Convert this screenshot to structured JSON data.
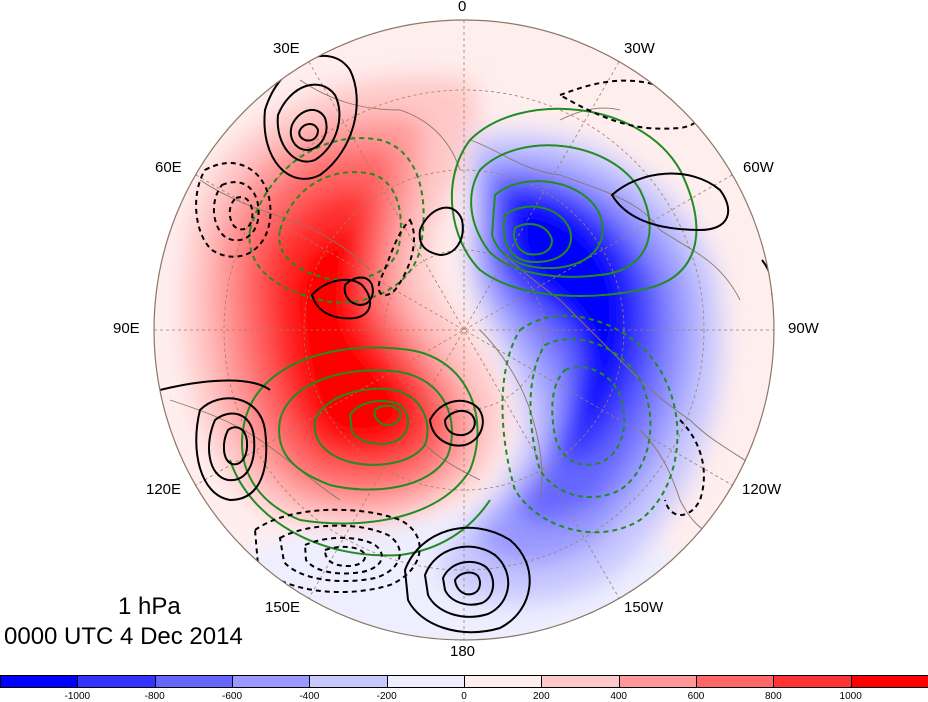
{
  "map": {
    "level_label": "1 hPa",
    "time_label": "0000 UTC 4 Dec 2014",
    "projection": "north polar stereographic",
    "longitude_labels": {
      "lon_0": "0",
      "lon_30w": "30W",
      "lon_60w": "60W",
      "lon_90w": "90W",
      "lon_120w": "120W",
      "lon_150w": "150W",
      "lon_180": "180",
      "lon_150e": "150E",
      "lon_120e": "120E",
      "lon_90e": "90E",
      "lon_60e": "60E",
      "lon_30e": "30E"
    },
    "colors": {
      "positive_max": "#ff0000",
      "negative_max": "#0000ff",
      "contour_green": "#228b22",
      "contour_black": "#000000",
      "coastline": "#8b7765",
      "graticule": "#a08060"
    }
  },
  "colorbar": {
    "tick_labels": [
      "-1000",
      "-800",
      "-600",
      "-400",
      "-200",
      "0",
      "200",
      "400",
      "600",
      "800",
      "1000"
    ],
    "colors": [
      "#0000ff",
      "#3333ff",
      "#6666ff",
      "#9999ff",
      "#c8c8ff",
      "#eeeeff",
      "#ffeeee",
      "#ffc8c8",
      "#ff9999",
      "#ff6666",
      "#ff3333",
      "#ff0000"
    ]
  }
}
